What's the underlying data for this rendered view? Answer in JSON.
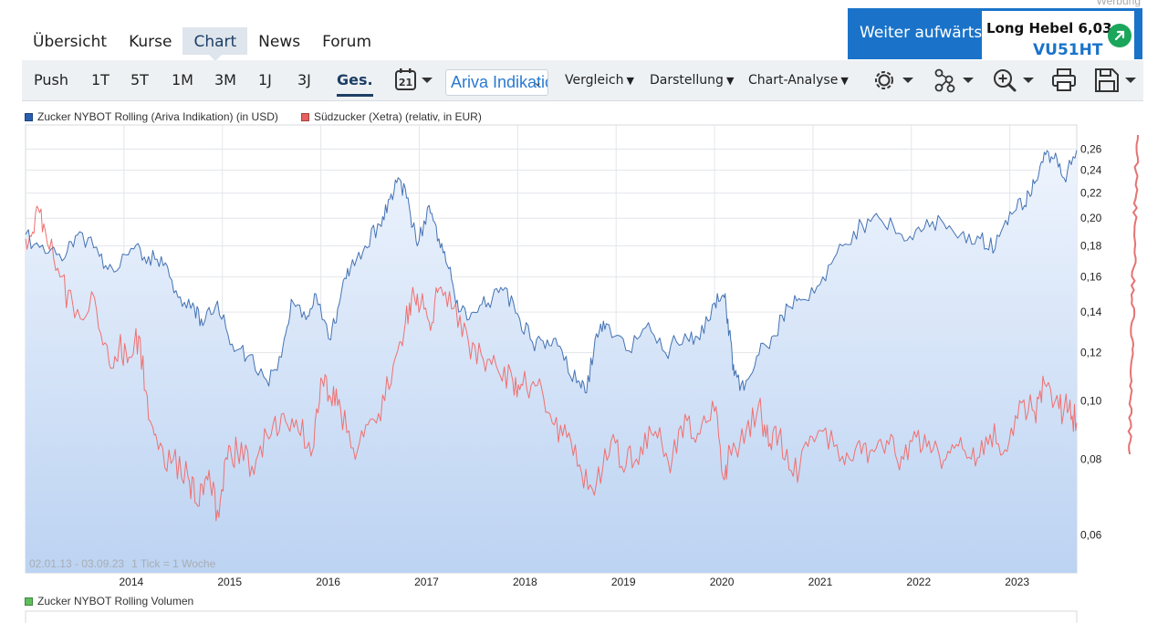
{
  "ad_label": "Werbung",
  "tabs": [
    {
      "label": "Übersicht",
      "active": false
    },
    {
      "label": "Kurse",
      "active": false
    },
    {
      "label": "Chart",
      "active": true
    },
    {
      "label": "News",
      "active": false
    },
    {
      "label": "Forum",
      "active": false
    }
  ],
  "promo": {
    "left_text": "Weiter aufwärts?",
    "title": "Long Hebel 6,03",
    "code": "VU51HT"
  },
  "toolbar": {
    "periods": [
      {
        "label": "Push",
        "active": false
      },
      {
        "label": "1T",
        "active": false
      },
      {
        "label": "5T",
        "active": false
      },
      {
        "label": "1M",
        "active": false
      },
      {
        "label": "3M",
        "active": false
      },
      {
        "label": "1J",
        "active": false
      },
      {
        "label": "3J",
        "active": false
      },
      {
        "label": "Ges.",
        "active": true
      }
    ],
    "calendar_day": "21",
    "source_select": "Ariva Indikation",
    "menus": [
      "Vergleich",
      "Darstellung",
      "Chart-Analyse"
    ],
    "icons": [
      "settings-icon",
      "network-icon",
      "zoom-icon",
      "print-icon",
      "save-icon"
    ]
  },
  "colors": {
    "primary_series": "#4472b3",
    "secondary_series": "#f07070",
    "fill_top": "#eef4fd",
    "fill_bottom": "#bcd3f2",
    "grid": "#e3e6ea",
    "volume_legend": "#5cbf5c"
  },
  "legend": [
    {
      "label": "Zucker NYBOT Rolling (Ariva Indikation) (in USD)",
      "color": "#2a5fb0"
    },
    {
      "label": "Südzucker (Xetra) (relativ, in EUR)",
      "color": "#e8605f"
    }
  ],
  "volume_legend": "Zucker NYBOT Rolling Volumen",
  "chart_data": {
    "type": "line",
    "scale": "log",
    "date_range_label": "02.01.13 - 03.09.23",
    "tick_label": "1 Tick = 1 Woche",
    "x_range": [
      2013.0,
      2023.68
    ],
    "y_range": [
      0.052,
      0.285
    ],
    "x_ticks": [
      "2014",
      "2015",
      "2016",
      "2017",
      "2018",
      "2019",
      "2020",
      "2021",
      "2022",
      "2023"
    ],
    "y_ticks": [
      "0,26",
      "0,24",
      "0,22",
      "0,20",
      "0,18",
      "0,16",
      "0,14",
      "0,12",
      "0,10",
      "0,08",
      "0,06"
    ],
    "series": [
      {
        "name": "Zucker NYBOT Rolling (Ariva Indikation) (in USD)",
        "x": [
          2013.0,
          2013.2,
          2013.4,
          2013.55,
          2013.75,
          2013.9,
          2014.1,
          2014.25,
          2014.4,
          2014.55,
          2014.7,
          2014.8,
          2014.95,
          2015.1,
          2015.25,
          2015.45,
          2015.6,
          2015.7,
          2015.85,
          2015.95,
          2016.1,
          2016.2,
          2016.3,
          2016.45,
          2016.6,
          2016.7,
          2016.8,
          2016.9,
          2016.98,
          2017.1,
          2017.2,
          2017.3,
          2017.4,
          2017.55,
          2017.7,
          2017.85,
          2018.0,
          2018.15,
          2018.3,
          2018.45,
          2018.6,
          2018.7,
          2018.8,
          2018.9,
          2019.1,
          2019.3,
          2019.5,
          2019.7,
          2019.85,
          2020.0,
          2020.1,
          2020.15,
          2020.2,
          2020.3,
          2020.45,
          2020.6,
          2020.75,
          2020.9,
          2021.1,
          2021.3,
          2021.5,
          2021.7,
          2021.9,
          2022.1,
          2022.3,
          2022.5,
          2022.7,
          2022.85,
          2023.0,
          2023.15,
          2023.25,
          2023.35,
          2023.45,
          2023.55,
          2023.68
        ],
        "values": [
          0.188,
          0.175,
          0.172,
          0.19,
          0.173,
          0.163,
          0.178,
          0.173,
          0.167,
          0.148,
          0.145,
          0.133,
          0.146,
          0.124,
          0.118,
          0.108,
          0.118,
          0.147,
          0.136,
          0.15,
          0.126,
          0.148,
          0.165,
          0.18,
          0.195,
          0.215,
          0.232,
          0.208,
          0.18,
          0.21,
          0.185,
          0.165,
          0.14,
          0.14,
          0.145,
          0.152,
          0.139,
          0.125,
          0.126,
          0.121,
          0.107,
          0.103,
          0.129,
          0.134,
          0.121,
          0.132,
          0.12,
          0.129,
          0.126,
          0.145,
          0.148,
          0.13,
          0.11,
          0.104,
          0.119,
          0.128,
          0.143,
          0.147,
          0.16,
          0.18,
          0.195,
          0.198,
          0.188,
          0.19,
          0.199,
          0.188,
          0.185,
          0.178,
          0.205,
          0.21,
          0.228,
          0.257,
          0.251,
          0.233,
          0.259
        ]
      },
      {
        "name": "Südzucker (Xetra) (relativ, in EUR)",
        "x": [
          2013.0,
          2013.1,
          2013.2,
          2013.35,
          2013.5,
          2013.7,
          2013.85,
          2013.95,
          2014.05,
          2014.15,
          2014.25,
          2014.35,
          2014.5,
          2014.65,
          2014.75,
          2014.85,
          2014.95,
          2015.05,
          2015.15,
          2015.3,
          2015.45,
          2015.6,
          2015.75,
          2015.9,
          2016.0,
          2016.1,
          2016.2,
          2016.35,
          2016.5,
          2016.65,
          2016.8,
          2016.9,
          2016.98,
          2017.1,
          2017.2,
          2017.35,
          2017.5,
          2017.65,
          2017.8,
          2017.95,
          2018.05,
          2018.2,
          2018.35,
          2018.5,
          2018.65,
          2018.8,
          2018.95,
          2019.1,
          2019.25,
          2019.4,
          2019.55,
          2019.7,
          2019.85,
          2020.0,
          2020.1,
          2020.15,
          2020.3,
          2020.45,
          2020.55,
          2020.65,
          2020.8,
          2020.95,
          2021.1,
          2021.3,
          2021.45,
          2021.6,
          2021.75,
          2021.9,
          2022.05,
          2022.2,
          2022.35,
          2022.5,
          2022.65,
          2022.8,
          2022.95,
          2023.1,
          2023.25,
          2023.35,
          2023.5,
          2023.6,
          2023.68
        ],
        "values": [
          0.185,
          0.203,
          0.191,
          0.16,
          0.137,
          0.148,
          0.115,
          0.123,
          0.118,
          0.128,
          0.093,
          0.083,
          0.08,
          0.075,
          0.067,
          0.074,
          0.066,
          0.08,
          0.083,
          0.078,
          0.088,
          0.095,
          0.093,
          0.081,
          0.109,
          0.101,
          0.097,
          0.08,
          0.093,
          0.1,
          0.125,
          0.145,
          0.15,
          0.135,
          0.153,
          0.142,
          0.125,
          0.117,
          0.112,
          0.108,
          0.106,
          0.106,
          0.092,
          0.087,
          0.076,
          0.073,
          0.086,
          0.078,
          0.084,
          0.089,
          0.076,
          0.095,
          0.088,
          0.096,
          0.074,
          0.084,
          0.085,
          0.099,
          0.084,
          0.087,
          0.075,
          0.084,
          0.089,
          0.081,
          0.085,
          0.083,
          0.086,
          0.081,
          0.087,
          0.082,
          0.08,
          0.087,
          0.078,
          0.088,
          0.083,
          0.1,
          0.096,
          0.107,
          0.097,
          0.097,
          0.092
        ]
      }
    ]
  }
}
